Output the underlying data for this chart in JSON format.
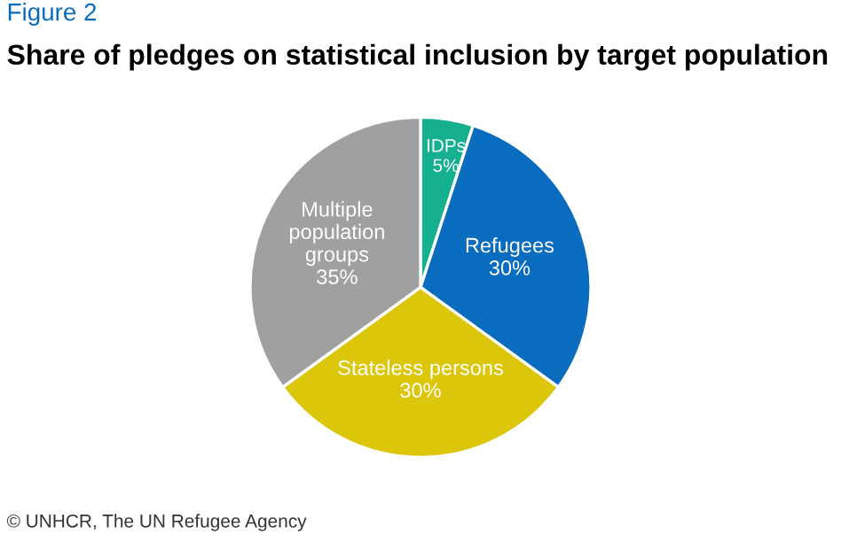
{
  "chart_data": {
    "type": "pie",
    "title": "Share of pledges on statistical inclusion by target population",
    "categories": [
      "IDPs",
      "Refugees",
      "Stateless persons",
      "Multiple\npopulation\ngroups"
    ],
    "values": [
      5,
      30,
      30,
      35
    ],
    "value_labels": [
      "5%",
      "30%",
      "30%",
      "35%"
    ],
    "colors": [
      "#14b08f",
      "#0a6cbf",
      "#dcc60a",
      "#a0a0a0"
    ],
    "annotations": [
      "Figure 2",
      "© UNHCR, The UN Refugee Agency"
    ]
  }
}
